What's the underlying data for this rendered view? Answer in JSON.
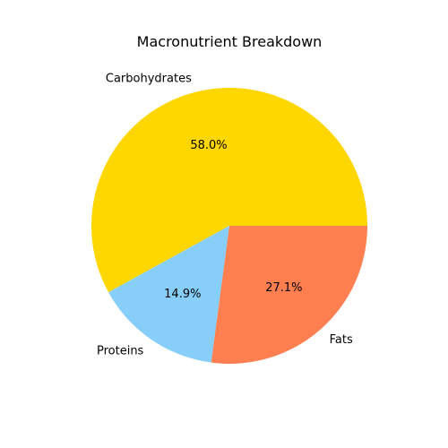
{
  "chart_data": {
    "type": "pie",
    "title": "Macronutrient Breakdown",
    "slices": [
      {
        "label": "Carbohydrates",
        "value": 58.0,
        "pct_label": "58.0%",
        "color": "#FFD700"
      },
      {
        "label": "Proteins",
        "value": 14.9,
        "pct_label": "14.9%",
        "color": "#87CEFA"
      },
      {
        "label": "Fats",
        "value": 27.1,
        "pct_label": "27.1%",
        "color": "#FF7F50"
      }
    ],
    "start_angle_deg": 0,
    "direction": "counterclockwise"
  }
}
